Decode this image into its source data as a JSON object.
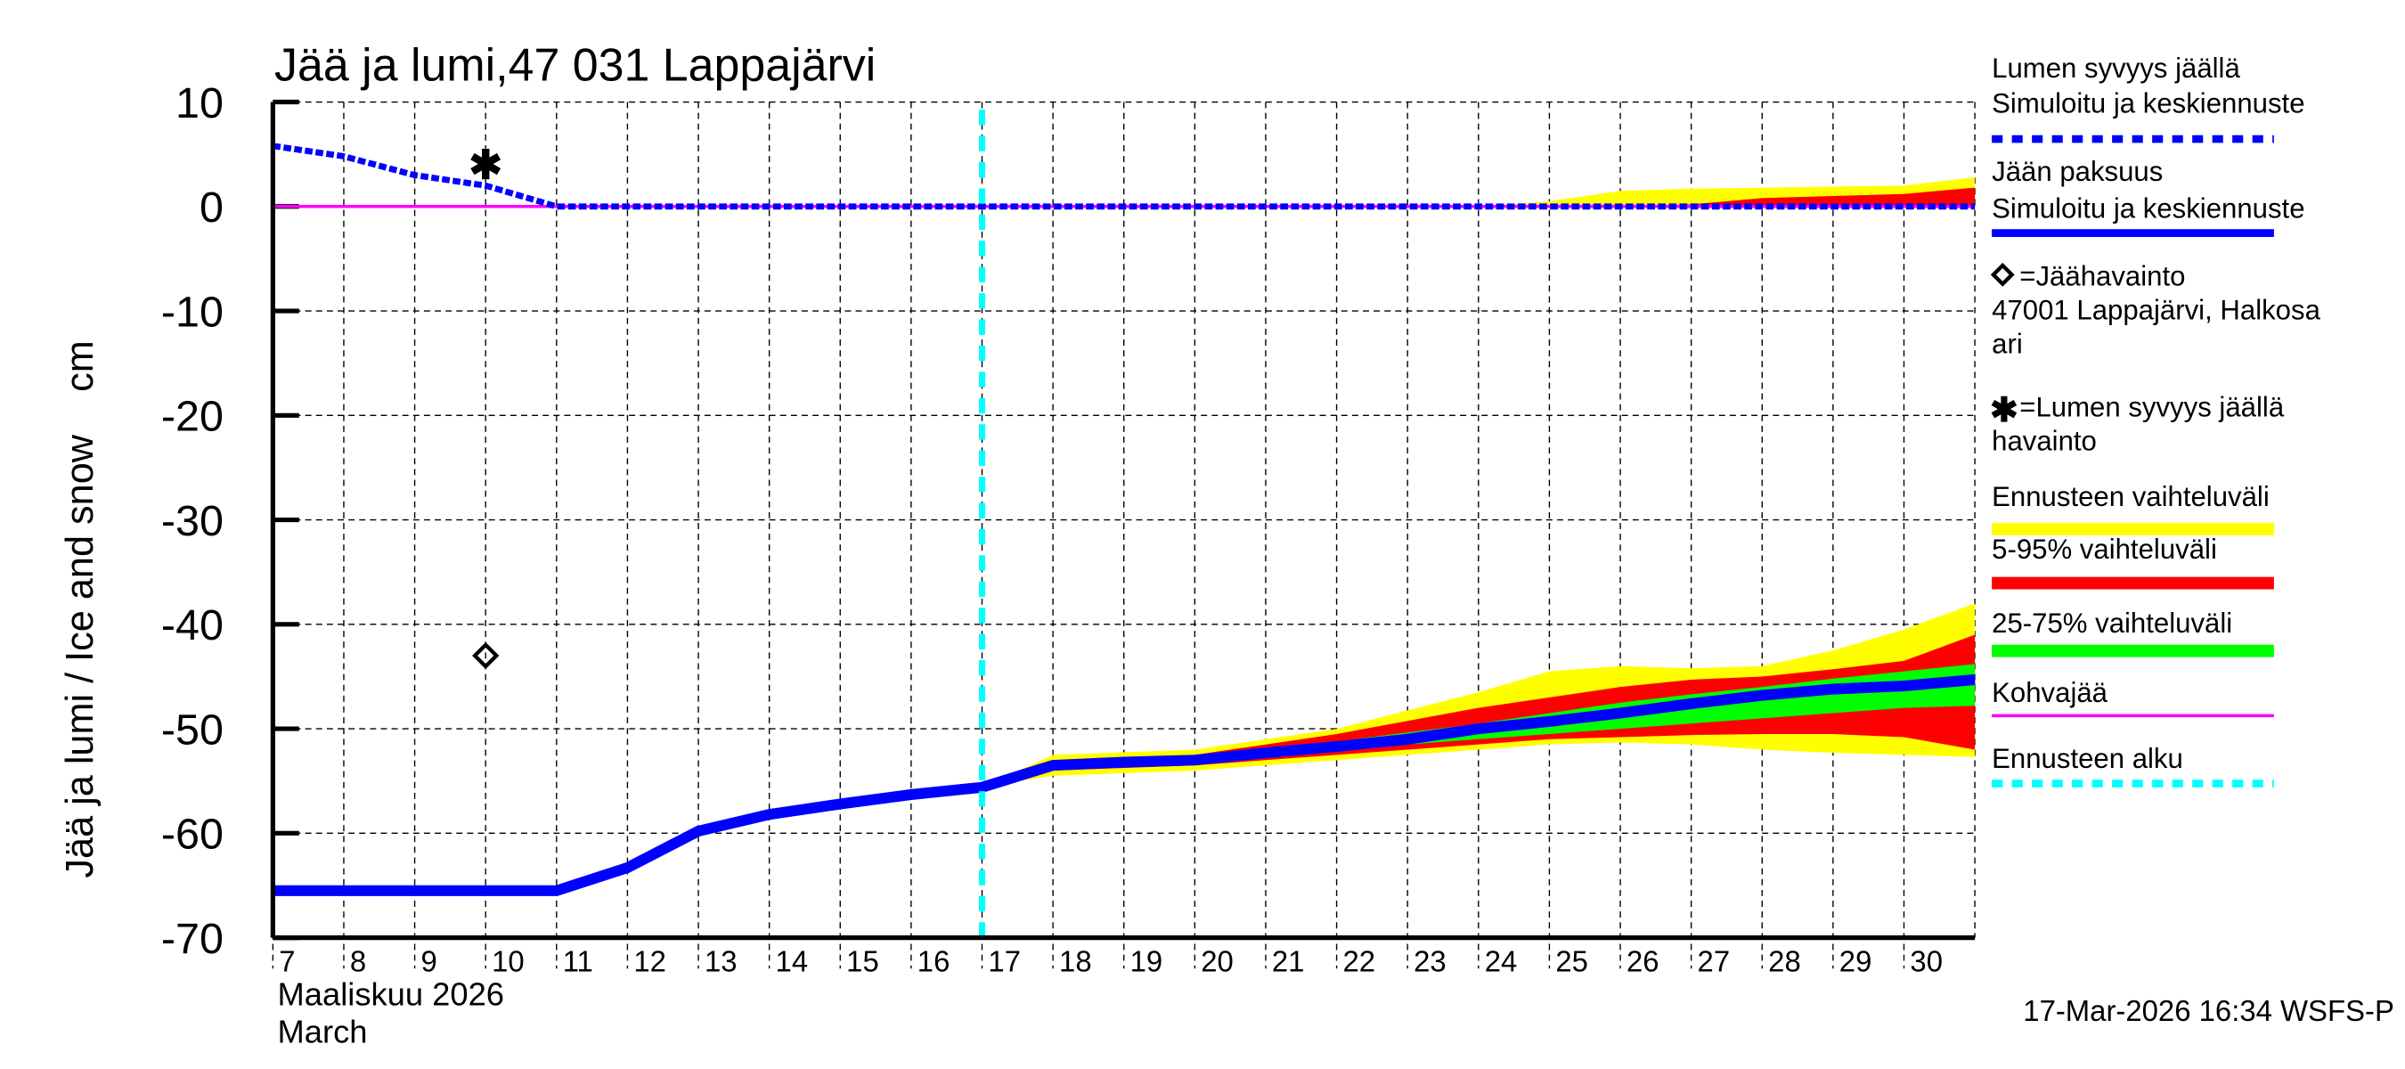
{
  "chart_data": {
    "type": "area",
    "title": "Jää ja lumi,47 031 Lappajärvi",
    "ylabel": "Jää ja lumi / Ice and snow    cm",
    "xlabel_line1": "Maaliskuu 2026",
    "xlabel_line2": "March",
    "ylim": [
      -70,
      10
    ],
    "xlim": [
      7,
      31
    ],
    "yticks": [
      "10",
      "0",
      "-10",
      "-20",
      "-30",
      "-40",
      "-50",
      "-60",
      "-70"
    ],
    "ytick_values": [
      10,
      0,
      -10,
      -20,
      -30,
      -40,
      -50,
      -60,
      -70
    ],
    "xticks": [
      "7",
      "8",
      "9",
      "10",
      "11",
      "12",
      "13",
      "14",
      "15",
      "16",
      "17",
      "18",
      "19",
      "20",
      "21",
      "22",
      "23",
      "24",
      "25",
      "26",
      "27",
      "28",
      "29",
      "30"
    ],
    "grid": true,
    "legend_position": "right",
    "forecast_start_day": 17,
    "kohvajaa_level": 0,
    "snow_depth": {
      "x": [
        7,
        8,
        9,
        10,
        11,
        17,
        31
      ],
      "y": [
        5.8,
        4.8,
        3,
        2,
        0,
        0,
        0
      ]
    },
    "ice_thickness": {
      "x": [
        7,
        11,
        12,
        13,
        14,
        15,
        16,
        17,
        18,
        19,
        20,
        21,
        22,
        23,
        24,
        25,
        26,
        27,
        28,
        29,
        30,
        31
      ],
      "y": [
        -65.5,
        -65.5,
        -63.3,
        -59.8,
        -58.2,
        -57.2,
        -56.3,
        -55.6,
        -53.5,
        -53.2,
        -53,
        -52.3,
        -51.7,
        -51,
        -50,
        -49.3,
        -48.5,
        -47.6,
        -46.8,
        -46.2,
        -45.9,
        -45.3
      ]
    },
    "ice_bands": {
      "x": [
        17,
        18,
        20,
        22,
        24,
        25,
        26,
        27,
        28,
        29,
        30,
        31
      ],
      "full": {
        "lo": [
          -55.6,
          -54.5,
          -54,
          -53,
          -52,
          -51.5,
          -51.3,
          -51.5,
          -52,
          -52.3,
          -52.5,
          -52.7
        ],
        "hi": [
          -55.6,
          -52.5,
          -52,
          -50,
          -46.5,
          -44.5,
          -44,
          -44.2,
          -44,
          -42.5,
          -40.5,
          -38
        ]
      },
      "p5_95": {
        "lo": [
          -55.6,
          -54,
          -53.5,
          -52.5,
          -51.5,
          -51,
          -50.8,
          -50.6,
          -50.5,
          -50.5,
          -50.8,
          -52
        ],
        "hi": [
          -55.6,
          -53,
          -52.5,
          -50.5,
          -48,
          -47,
          -46,
          -45.3,
          -45,
          -44.3,
          -43.5,
          -41
        ]
      },
      "p25_75": {
        "lo": [
          -55.6,
          -53.6,
          -53.2,
          -52,
          -51,
          -50.5,
          -50,
          -49.5,
          -49,
          -48.5,
          -48,
          -47.8
        ],
        "hi": [
          -55.6,
          -53.2,
          -52.8,
          -51.2,
          -49.5,
          -48.5,
          -47.5,
          -46.7,
          -46,
          -45.2,
          -44.5,
          -43.8
        ]
      }
    },
    "snow_bands": {
      "x": [
        17,
        24,
        25,
        26,
        27,
        28,
        29,
        30,
        31
      ],
      "full": {
        "lo": [
          0,
          0,
          0,
          0,
          0,
          0,
          0,
          0,
          0
        ],
        "hi": [
          0,
          0,
          0.5,
          1.5,
          1.7,
          1.8,
          1.9,
          2,
          2.8
        ]
      },
      "p5_95": {
        "lo": [
          0,
          0,
          0,
          0,
          0,
          0,
          0,
          0,
          0
        ],
        "hi": [
          0,
          0,
          0,
          0,
          0.2,
          0.8,
          1,
          1.2,
          1.8
        ]
      }
    },
    "observations": {
      "snow_depth": {
        "day": 10,
        "value": 4
      },
      "ice": {
        "day": 10,
        "value": -43
      }
    }
  },
  "legend": [
    {
      "line1": "Lumen syvyys jäällä",
      "line2": "Simuloitu ja keskiennuste",
      "style": "dashed",
      "color": "#0000ff"
    },
    {
      "line1": "Jään paksuus",
      "line2": "Simuloitu ja keskiennuste",
      "style": "solid",
      "color": "#0000ff"
    },
    {
      "line1": "=Jäähavainto",
      "line2": "47001 Lappajärvi, Halkosa",
      "line3": "ari",
      "symbol": "diamond"
    },
    {
      "line1": "=Lumen syvyys jäällä",
      "line2": "havainto",
      "symbol": "star"
    },
    {
      "line1": "Ennusteen vaihteluväli",
      "color": "#ffff00"
    },
    {
      "line1": "5-95% vaihteluväli",
      "color": "#ff0000"
    },
    {
      "line1": "25-75% vaihteluväli",
      "color": "#00ff00"
    },
    {
      "line1": "Kohvajää",
      "color": "#ff00ff"
    },
    {
      "line1": "Ennusteen alku",
      "color": "#00ffff",
      "style": "dashed"
    }
  ],
  "footer": "17-Mar-2026 16:34 WSFS-P"
}
